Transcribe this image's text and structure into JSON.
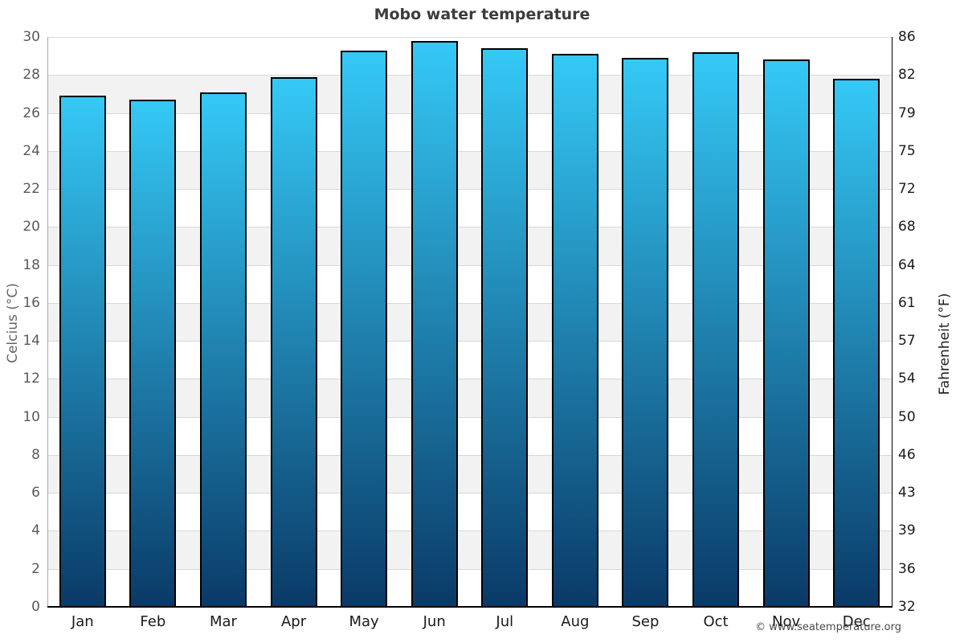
{
  "chart_data": {
    "type": "bar",
    "title": "Mobo water temperature",
    "categories": [
      "Jan",
      "Feb",
      "Mar",
      "Apr",
      "May",
      "Jun",
      "Jul",
      "Aug",
      "Sep",
      "Oct",
      "Nov",
      "Dec"
    ],
    "values": [
      26.9,
      26.7,
      27.1,
      27.9,
      29.3,
      29.8,
      29.4,
      29.1,
      28.9,
      29.2,
      28.8,
      27.8
    ],
    "value_unit": "°C",
    "ylabel_left": "Celcius (°C)",
    "ylabel_right": "Fahrenheit (°F)",
    "ylim": [
      0,
      30
    ],
    "yticks_celsius": [
      0,
      2,
      4,
      6,
      8,
      10,
      12,
      14,
      16,
      18,
      20,
      22,
      24,
      26,
      28,
      30
    ],
    "yticks_fahrenheit": [
      "32",
      "36",
      "39",
      "43",
      "46",
      "50",
      "54",
      "57",
      "61",
      "64",
      "68",
      "72",
      "75",
      "79",
      "82",
      "86"
    ],
    "legend": "none",
    "grid": "horizontal stripes every 2°C",
    "colors": {
      "bar_gradient_top": "#35c9f6",
      "bar_gradient_bottom": "#0a3a67",
      "bar_border": "#000000",
      "band_alternate": "#f2f2f2",
      "band_base": "#ffffff",
      "gridline": "#d8d8d8",
      "title_text": "#3c3c3c",
      "left_tick_text": "#5a5a5a",
      "right_tick_text": "#1b1b1b"
    }
  },
  "footer": {
    "copyright": "© www.seatemperature.org"
  }
}
